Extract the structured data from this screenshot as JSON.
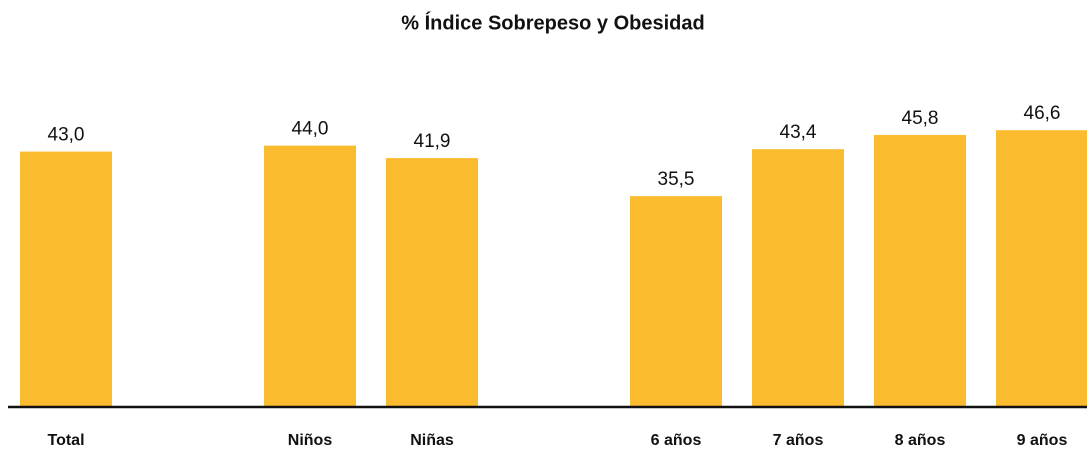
{
  "chart_data": {
    "type": "bar",
    "title": "% Índice Sobrepeso y Obesidad",
    "categories": [
      "Total",
      null,
      "Niños",
      "Niñas",
      null,
      "6 años",
      "7 años",
      "8 años",
      "9 años"
    ],
    "values": [
      43.0,
      null,
      44.0,
      41.9,
      null,
      35.5,
      43.4,
      45.8,
      46.6
    ],
    "value_labels": [
      "43,0",
      null,
      "44,0",
      "41,9",
      null,
      "35,5",
      "43,4",
      "45,8",
      "46,6"
    ],
    "color": "#fbbb2e",
    "ylim": [
      0,
      50
    ]
  }
}
